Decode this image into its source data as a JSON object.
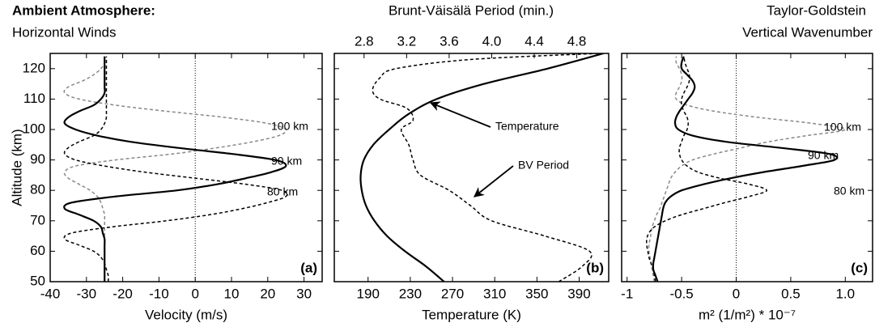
{
  "chart_data": [
    {
      "type": "line",
      "title": "Ambient Atmosphere:",
      "subtitle": "Horizontal Winds",
      "label": "(a)",
      "xlabel": "Velocity (m/s)",
      "ylabel": "Altitude (km)",
      "xlim": [
        -40,
        35
      ],
      "xticks": [
        -40,
        -30,
        -20,
        -10,
        0,
        10,
        20,
        30
      ],
      "ylim": [
        50,
        125
      ],
      "yticks": [
        50,
        60,
        70,
        80,
        90,
        100,
        110,
        120
      ],
      "zero_line": true,
      "y": [
        50,
        52,
        54,
        56,
        58,
        60,
        62,
        64,
        66,
        68,
        70,
        72,
        74,
        76,
        78,
        80,
        82,
        84,
        86,
        88,
        90,
        92,
        94,
        96,
        98,
        100,
        102,
        104,
        106,
        108,
        110,
        112,
        114,
        116,
        118,
        120,
        122,
        124
      ],
      "series": [
        {
          "name": "100 km",
          "color": "#888888",
          "dashed": true,
          "values": [
            -25,
            -25,
            -25,
            -25,
            -25,
            -25,
            -25,
            -25,
            -25,
            -25,
            -25,
            -25,
            -25.5,
            -26,
            -27,
            -29,
            -32,
            -35,
            -36,
            -33,
            -22,
            -6,
            6,
            16,
            23,
            25,
            20,
            8,
            -8,
            -22,
            -32,
            -36,
            -35,
            -31,
            -28,
            -26,
            -25,
            -25
          ]
        },
        {
          "name": "90 km",
          "color": "#000000",
          "dashed": false,
          "values": [
            -25,
            -25,
            -25,
            -25,
            -25,
            -25,
            -25,
            -25,
            -25.5,
            -26,
            -28,
            -32,
            -36,
            -34,
            -22,
            -5,
            6,
            14,
            21,
            25,
            22,
            10,
            -5,
            -18,
            -27,
            -33,
            -36,
            -35,
            -32,
            -28,
            -26,
            -25,
            -25,
            -25,
            -25,
            -25,
            -25,
            -25
          ]
        },
        {
          "name": "80 km",
          "color": "#000000",
          "dashed": true,
          "values": [
            -24,
            -24,
            -24.5,
            -25,
            -26,
            -28,
            -32,
            -36,
            -34,
            -23,
            -8,
            4,
            13,
            20,
            25,
            24,
            14,
            0,
            -14,
            -25,
            -33,
            -36,
            -35,
            -32,
            -28,
            -26,
            -25,
            -24.5,
            -24.5,
            -24.5,
            -24.5,
            -24.5,
            -24.5,
            -24.5,
            -24.5,
            -24.5,
            -24.5,
            -24.5
          ]
        }
      ]
    },
    {
      "type": "line",
      "title": "Brunt-Väisälä Period (min.)",
      "label": "(b)",
      "xlabel": "Temperature (K)",
      "xlim": [
        158,
        418
      ],
      "xticks": [
        190,
        230,
        270,
        310,
        350,
        390
      ],
      "x2lim": [
        2.52,
        5.1
      ],
      "x2ticks": [
        2.8,
        3.2,
        3.6,
        {
          "value": 4,
          "label": "4.0"
        },
        4.4,
        4.8
      ],
      "ylim": [
        50,
        125
      ],
      "yticks": [
        50,
        60,
        70,
        80,
        90,
        100,
        110,
        120
      ],
      "series": [
        {
          "name": "Temperature",
          "color": "#000000",
          "dashed": false,
          "axis": "x",
          "y": [
            50,
            55,
            60,
            65,
            70,
            75,
            80,
            85,
            90,
            95,
            100,
            105,
            110,
            115,
            120,
            125
          ],
          "values": [
            262,
            245,
            225,
            208,
            196,
            188,
            184,
            183,
            186,
            195,
            210,
            228,
            255,
            300,
            360,
            413
          ]
        },
        {
          "name": "BV Period",
          "color": "#000000",
          "dashed": true,
          "axis": "x2",
          "y": [
            50,
            55,
            60,
            65,
            70,
            75,
            80,
            85,
            90,
            95,
            100,
            103,
            107,
            110,
            113,
            117,
            120,
            123,
            125
          ],
          "values": [
            4.63,
            4.85,
            4.92,
            4.5,
            4.0,
            3.8,
            3.6,
            3.33,
            3.26,
            3.22,
            3.15,
            3.26,
            3.2,
            2.95,
            2.88,
            2.95,
            3.1,
            3.8,
            5.0
          ]
        }
      ]
    },
    {
      "type": "line",
      "title": "Taylor-Goldstein",
      "subtitle": "Vertical Wavenumber",
      "label": "(c)",
      "xlabel": "m² (1/m²) * 10⁻⁷",
      "xlim": [
        -1.05,
        1.25
      ],
      "xticks": [
        -1,
        -0.5,
        0,
        0.5,
        {
          "value": 1,
          "label": "1.0"
        }
      ],
      "ylim": [
        50,
        125
      ],
      "yticks": [
        50,
        60,
        70,
        80,
        90,
        100,
        110,
        120
      ],
      "zero_line": true,
      "y": [
        50,
        52,
        54,
        56,
        58,
        60,
        62,
        64,
        66,
        68,
        70,
        72,
        74,
        76,
        78,
        80,
        82,
        84,
        86,
        88,
        90,
        92,
        94,
        96,
        98,
        100,
        102,
        104,
        106,
        108,
        110,
        112,
        114,
        116,
        118,
        120,
        122,
        124
      ],
      "series": [
        {
          "name": "100 km",
          "color": "#888888",
          "dashed": true,
          "values": [
            -0.75,
            -0.76,
            -0.77,
            -0.78,
            -0.79,
            -0.8,
            -0.8,
            -0.79,
            -0.78,
            -0.77,
            -0.75,
            -0.73,
            -0.7,
            -0.68,
            -0.66,
            -0.64,
            -0.62,
            -0.6,
            -0.56,
            -0.5,
            -0.4,
            -0.2,
            0.05,
            0.3,
            0.65,
            1.0,
            0.7,
            0.2,
            -0.2,
            -0.45,
            -0.55,
            -0.55,
            -0.52,
            -0.5,
            -0.5,
            -0.52,
            -0.55,
            -0.55
          ]
        },
        {
          "name": "90 km",
          "color": "#000000",
          "dashed": false,
          "values": [
            -0.72,
            -0.74,
            -0.76,
            -0.76,
            -0.75,
            -0.74,
            -0.73,
            -0.72,
            -0.71,
            -0.7,
            -0.69,
            -0.68,
            -0.67,
            -0.65,
            -0.6,
            -0.5,
            -0.3,
            -0.05,
            0.25,
            0.6,
            0.9,
            0.85,
            0.4,
            -0.1,
            -0.4,
            -0.53,
            -0.56,
            -0.55,
            -0.52,
            -0.48,
            -0.44,
            -0.4,
            -0.38,
            -0.4,
            -0.45,
            -0.5,
            -0.5,
            -0.48
          ]
        },
        {
          "name": "80 km",
          "color": "#000000",
          "dashed": true,
          "values": [
            -0.74,
            -0.75,
            -0.76,
            -0.78,
            -0.8,
            -0.81,
            -0.82,
            -0.82,
            -0.8,
            -0.75,
            -0.65,
            -0.5,
            -0.3,
            -0.1,
            0.12,
            0.28,
            0.12,
            -0.15,
            -0.35,
            -0.45,
            -0.5,
            -0.52,
            -0.52,
            -0.5,
            -0.48,
            -0.45,
            -0.44,
            -0.45,
            -0.48,
            -0.5,
            -0.5,
            -0.48,
            -0.45,
            -0.43,
            -0.43,
            -0.45,
            -0.47,
            -0.48
          ]
        }
      ]
    }
  ]
}
